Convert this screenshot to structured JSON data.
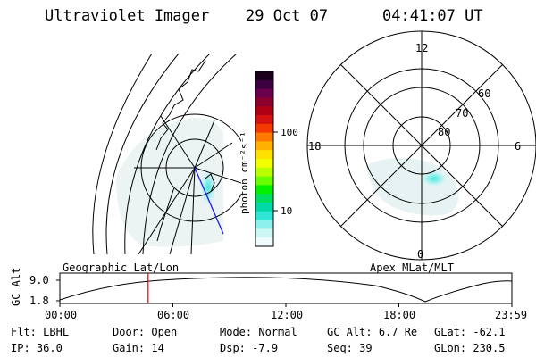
{
  "header": {
    "title": "Ultraviolet Imager",
    "date": "29 Oct 07",
    "time": "04:41:07 UT"
  },
  "colorbar": {
    "unit_label": "photon cm⁻²s⁻¹",
    "ticks": [
      "100",
      "10"
    ],
    "colors": [
      "#1a001a",
      "#3a0040",
      "#6a004d",
      "#8c0030",
      "#b00015",
      "#d41010",
      "#f23a00",
      "#ff7a00",
      "#ffb000",
      "#ffe200",
      "#f2ff00",
      "#b8ff00",
      "#6aff00",
      "#00f000",
      "#00e060",
      "#00d8a8",
      "#2fe6d6",
      "#8cf0ec",
      "#cdf7f5",
      "#f2fbfb"
    ]
  },
  "geographic_panel": {
    "label": "Geographic Lat/Lon"
  },
  "apex_panel": {
    "label": "Apex MLat/MLT",
    "mlt_labels": {
      "top": "12",
      "left": "18",
      "right": "6",
      "bottom": "0"
    },
    "lat_labels": [
      "60",
      "70",
      "80"
    ]
  },
  "timeline": {
    "ylabel": "GC Alt",
    "y_ticks": [
      "9.0",
      "1.8"
    ],
    "x_ticks": [
      "00:00",
      "06:00",
      "12:00",
      "18:00",
      "23:59"
    ],
    "current_marker_time": "04:41",
    "marker_color": "#e00000"
  },
  "status": {
    "row1": [
      {
        "key": "Flt:",
        "value": "LBHL"
      },
      {
        "key": "Door:",
        "value": "Open"
      },
      {
        "key": "Mode:",
        "value": "Normal"
      },
      {
        "key": "GC Alt:",
        "value": "6.7 Re"
      },
      {
        "key": "GLat:",
        "value": "-62.1"
      }
    ],
    "row2": [
      {
        "key": "IP:",
        "value": "36.0"
      },
      {
        "key": "Gain:",
        "value": "14"
      },
      {
        "key": "Dsp:",
        "value": "-7.9"
      },
      {
        "key": "Seq:",
        "value": "39"
      },
      {
        "key": "GLon:",
        "value": "230.5"
      }
    ]
  }
}
